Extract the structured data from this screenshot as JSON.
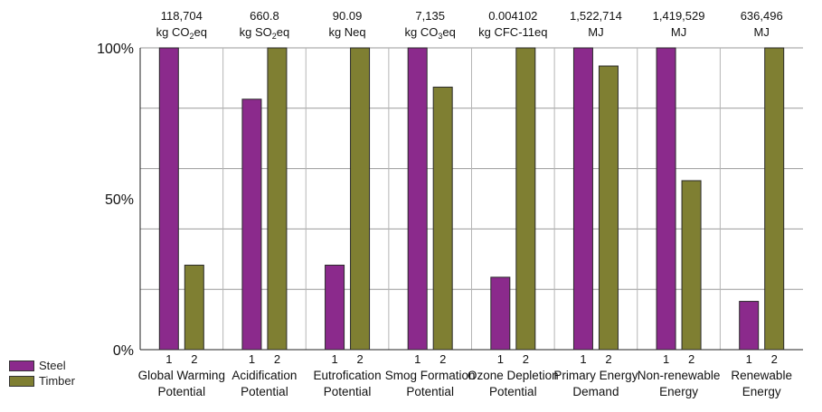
{
  "chart_data": {
    "type": "bar",
    "title": "",
    "xlabel": "",
    "ylabel": "",
    "ylim": [
      0,
      100
    ],
    "yticks": [
      "0%",
      "50%",
      "100%"
    ],
    "bar_labels": [
      "1",
      "2"
    ],
    "categories": [
      {
        "name_lines": [
          "Global Warming",
          "Potential"
        ],
        "value_lines": [
          "118,704",
          "kg CO2eq"
        ]
      },
      {
        "name_lines": [
          "Acidification",
          "Potential"
        ],
        "value_lines": [
          "660.8",
          "kg SO2eq"
        ]
      },
      {
        "name_lines": [
          "Eutrofication",
          "Potential"
        ],
        "value_lines": [
          "90.09",
          "kg Neq"
        ]
      },
      {
        "name_lines": [
          "Smog Formation",
          "Potential"
        ],
        "value_lines": [
          "7,135",
          "kg CO3eq"
        ]
      },
      {
        "name_lines": [
          "Ozone Depletion",
          "Potential"
        ],
        "value_lines": [
          "0.004102",
          "kg CFC-11eq"
        ]
      },
      {
        "name_lines": [
          "Primary Energy",
          "Demand"
        ],
        "value_lines": [
          "1,522,714",
          "MJ"
        ]
      },
      {
        "name_lines": [
          "Non-renewable",
          "Energy"
        ],
        "value_lines": [
          "1,419,529",
          "MJ"
        ]
      },
      {
        "name_lines": [
          "Renewable",
          "Energy"
        ],
        "value_lines": [
          "636,496",
          "MJ"
        ]
      }
    ],
    "series": [
      {
        "name": "Steel",
        "color": "#8B2A8C",
        "values": [
          100,
          83,
          28,
          100,
          24,
          100,
          100,
          16
        ]
      },
      {
        "name": "Timber",
        "color": "#7F7F32",
        "values": [
          28,
          100,
          100,
          87,
          100,
          94,
          56,
          100
        ]
      }
    ]
  }
}
